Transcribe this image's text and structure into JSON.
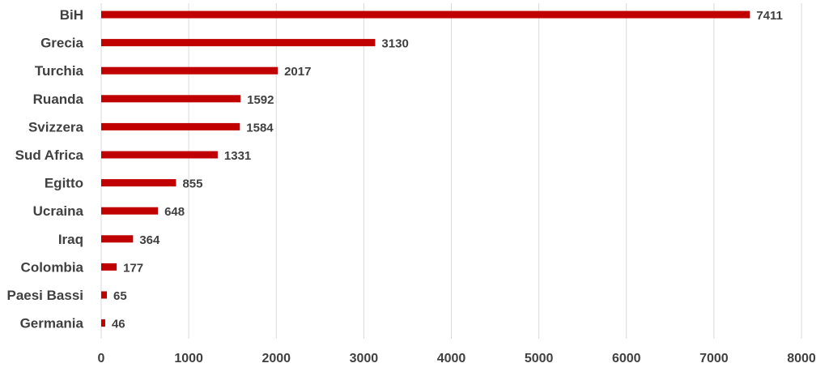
{
  "chart_data": {
    "type": "bar",
    "orientation": "horizontal",
    "categories": [
      "BiH",
      "Grecia",
      "Turchia",
      "Ruanda",
      "Svizzera",
      "Sud Africa",
      "Egitto",
      "Ucraina",
      "Iraq",
      "Colombia",
      "Paesi Bassi",
      "Germania"
    ],
    "values": [
      7411,
      3130,
      2017,
      1592,
      1584,
      1331,
      855,
      648,
      364,
      177,
      65,
      46
    ],
    "xlim": [
      0,
      8000
    ],
    "x_ticks": [
      0,
      1000,
      2000,
      3000,
      4000,
      5000,
      6000,
      7000,
      8000
    ],
    "grid": true,
    "data_labels": true,
    "bar_color": "#c00000",
    "gridline_color": "#d9d9d9",
    "title": "",
    "xlabel": "",
    "ylabel": ""
  }
}
